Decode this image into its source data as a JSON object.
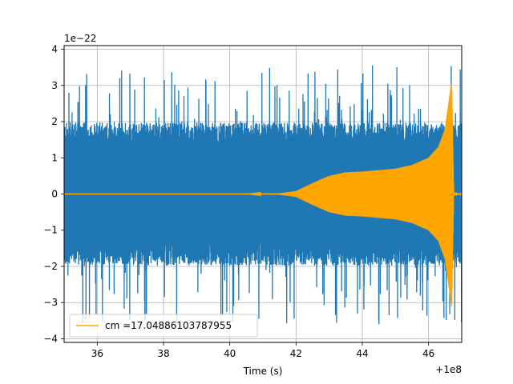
{
  "chart_data": {
    "type": "line",
    "title": "",
    "xlabel": "Time (s)",
    "ylabel": "",
    "x_offset_label": "+1e8",
    "y_scale_label": "1e−22",
    "xlim": [
      35,
      47
    ],
    "ylim": [
      -4.1,
      4.1
    ],
    "x_ticks": [
      36,
      38,
      40,
      42,
      44,
      46
    ],
    "y_ticks": [
      -4,
      -3,
      -2,
      -1,
      0,
      1,
      2,
      3,
      4
    ],
    "x_tick_labels": [
      "36",
      "38",
      "40",
      "42",
      "44",
      "46"
    ],
    "y_tick_labels": [
      "−4",
      "−3",
      "−2",
      "−1",
      "0",
      "1",
      "2",
      "3",
      "4"
    ],
    "grid": true,
    "legend_position": "lower-left",
    "series": [
      {
        "color": "#1f77b4",
        "style": "noise",
        "description": "strain data",
        "x_range": [
          35,
          47
        ],
        "typical_amplitude": 1.8,
        "peak_amplitude": 3.6,
        "mean": 0
      },
      {
        "name": "cm =17.04886103787955",
        "color": "#ffa500",
        "style": "chirp",
        "envelope": [
          {
            "x": 35.0,
            "y": 0.0
          },
          {
            "x": 40.5,
            "y": 0.0
          },
          {
            "x": 41.5,
            "y": 0.02
          },
          {
            "x": 42.0,
            "y": 0.08
          },
          {
            "x": 42.5,
            "y": 0.3
          },
          {
            "x": 43.0,
            "y": 0.5
          },
          {
            "x": 43.5,
            "y": 0.6
          },
          {
            "x": 44.0,
            "y": 0.62
          },
          {
            "x": 45.0,
            "y": 0.7
          },
          {
            "x": 45.5,
            "y": 0.8
          },
          {
            "x": 46.0,
            "y": 1.0
          },
          {
            "x": 46.3,
            "y": 1.3
          },
          {
            "x": 46.5,
            "y": 1.8
          },
          {
            "x": 46.62,
            "y": 2.6
          },
          {
            "x": 46.7,
            "y": 3.1
          },
          {
            "x": 46.76,
            "y": 0.05
          },
          {
            "x": 47.0,
            "y": 0.0
          }
        ]
      }
    ]
  },
  "legend": {
    "entries": [
      {
        "label": "cm =17.04886103787955",
        "color": "#ffa500"
      }
    ]
  }
}
